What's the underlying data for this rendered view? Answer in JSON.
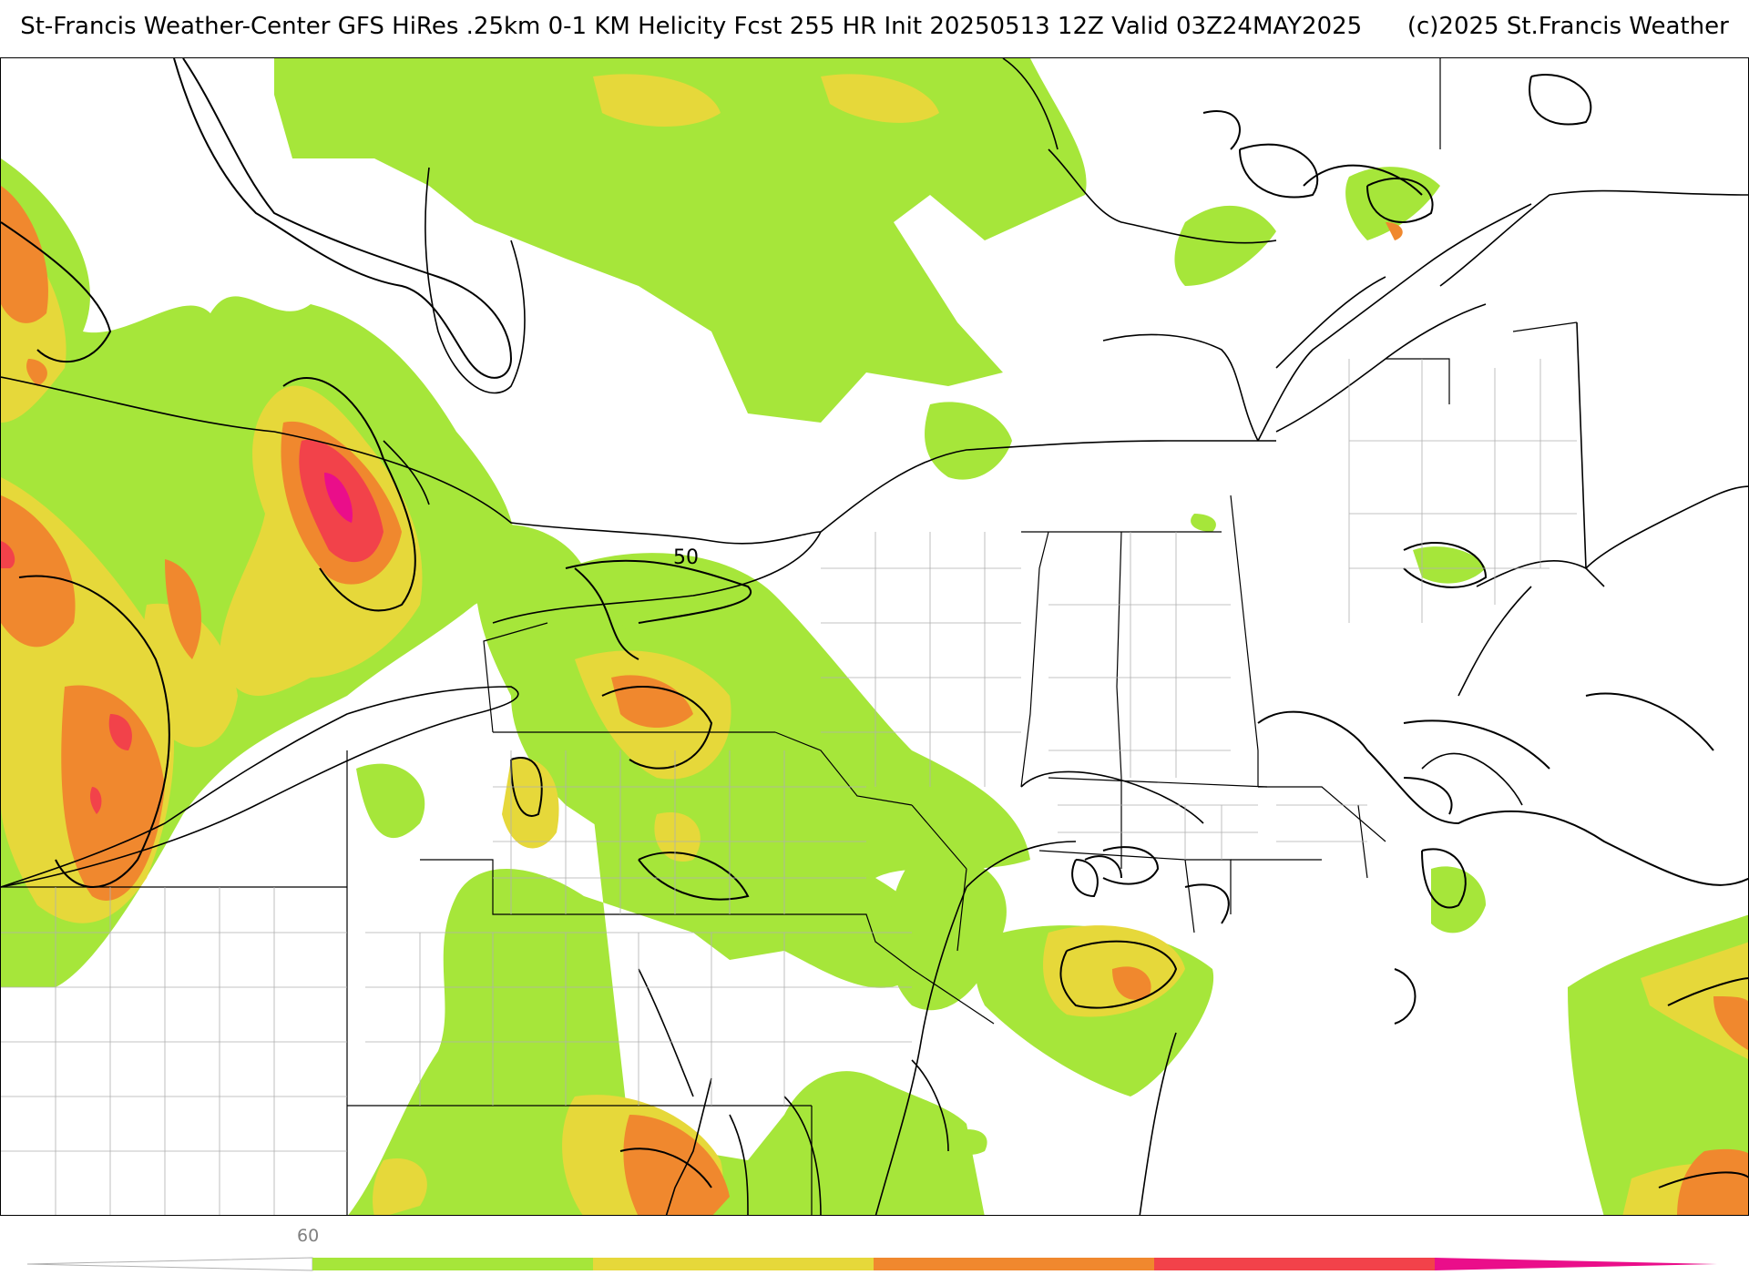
{
  "header": {
    "title": "St-Francis Weather-Center GFS HiRes .25km 0-1 KM Helicity Fcst 255 HR Init 20250513 12Z  Valid 03Z24MAY2025",
    "copyright": "(c)2025 St.Francis Weather"
  },
  "map": {
    "contour_label": "50",
    "colors": {
      "lvl1": "#a6e63a",
      "lvl2": "#e6d83a",
      "lvl3": "#f0882e",
      "lvl4": "#f2424a",
      "lvl5": "#ea0e8a",
      "outline": "#000000",
      "county": "#b0b0b0"
    }
  },
  "colorbar": {
    "min_label": "60",
    "colors": [
      "#a6e63a",
      "#e6d83a",
      "#f0882e",
      "#f2424a",
      "#ea0e8a"
    ]
  }
}
